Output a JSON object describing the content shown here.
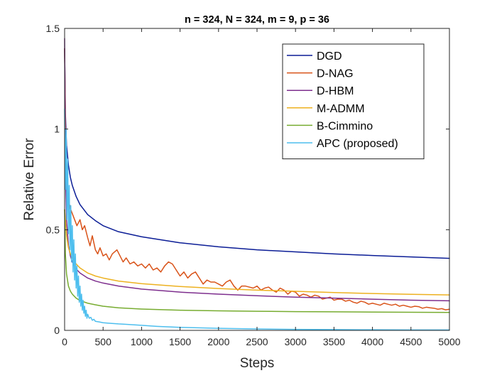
{
  "chart_data": {
    "type": "line",
    "title": "n = 324, N = 324, m = 9, p = 36",
    "xlabel": "Steps",
    "ylabel": "Relative Error",
    "xlim": [
      0,
      5000
    ],
    "ylim": [
      0,
      1.5
    ],
    "xticks": [
      0,
      500,
      1000,
      1500,
      2000,
      2500,
      3000,
      3500,
      4000,
      4500,
      5000
    ],
    "yticks": [
      0,
      0.5,
      1,
      1.5
    ],
    "grid": false,
    "legend_position": "top-right",
    "series": [
      {
        "name": "DGD",
        "color": "#0b1d96",
        "x": [
          0,
          10,
          25,
          50,
          75,
          100,
          150,
          200,
          300,
          400,
          500,
          700,
          1000,
          1500,
          2000,
          2500,
          3000,
          3500,
          4000,
          4500,
          5000
        ],
        "y": [
          1.4,
          1.08,
          0.92,
          0.82,
          0.76,
          0.72,
          0.665,
          0.625,
          0.575,
          0.545,
          0.52,
          0.49,
          0.465,
          0.435,
          0.415,
          0.4,
          0.39,
          0.38,
          0.372,
          0.365,
          0.358
        ]
      },
      {
        "name": "D-NAG",
        "color": "#d95319",
        "x": [
          0,
          10,
          20,
          40,
          60,
          80,
          100,
          130,
          160,
          200,
          230,
          260,
          300,
          330,
          360,
          400,
          430,
          460,
          500,
          540,
          580,
          620,
          680,
          720,
          760,
          800,
          850,
          900,
          950,
          1000,
          1050,
          1100,
          1150,
          1200,
          1250,
          1300,
          1350,
          1400,
          1450,
          1500,
          1550,
          1600,
          1650,
          1700,
          1750,
          1800,
          1850,
          1900,
          1950,
          2000,
          2050,
          2100,
          2150,
          2200,
          2250,
          2300,
          2350,
          2400,
          2450,
          2500,
          2550,
          2600,
          2650,
          2700,
          2750,
          2800,
          2850,
          2900,
          2950,
          3000,
          3050,
          3100,
          3150,
          3200,
          3250,
          3300,
          3350,
          3400,
          3450,
          3500,
          3550,
          3600,
          3650,
          3700,
          3750,
          3800,
          3850,
          3900,
          3950,
          4000,
          4050,
          4100,
          4150,
          4200,
          4250,
          4300,
          4350,
          4400,
          4450,
          4500,
          4550,
          4600,
          4650,
          4700,
          4750,
          4800,
          4850,
          4900,
          4950,
          5000
        ],
        "y": [
          1.4,
          1.05,
          0.85,
          0.7,
          0.63,
          0.6,
          0.58,
          0.55,
          0.52,
          0.55,
          0.5,
          0.52,
          0.46,
          0.42,
          0.47,
          0.4,
          0.38,
          0.41,
          0.37,
          0.38,
          0.35,
          0.38,
          0.4,
          0.37,
          0.34,
          0.36,
          0.33,
          0.34,
          0.32,
          0.33,
          0.31,
          0.33,
          0.3,
          0.31,
          0.29,
          0.32,
          0.34,
          0.33,
          0.3,
          0.27,
          0.29,
          0.26,
          0.28,
          0.29,
          0.26,
          0.23,
          0.25,
          0.24,
          0.24,
          0.23,
          0.22,
          0.24,
          0.25,
          0.22,
          0.2,
          0.22,
          0.22,
          0.215,
          0.21,
          0.22,
          0.2,
          0.21,
          0.215,
          0.2,
          0.19,
          0.21,
          0.2,
          0.18,
          0.195,
          0.19,
          0.17,
          0.18,
          0.175,
          0.165,
          0.175,
          0.17,
          0.155,
          0.16,
          0.165,
          0.15,
          0.155,
          0.155,
          0.145,
          0.15,
          0.14,
          0.135,
          0.145,
          0.14,
          0.13,
          0.135,
          0.13,
          0.125,
          0.135,
          0.13,
          0.125,
          0.13,
          0.12,
          0.125,
          0.12,
          0.115,
          0.12,
          0.118,
          0.11,
          0.115,
          0.112,
          0.11,
          0.105,
          0.108,
          0.102,
          0.105
        ]
      },
      {
        "name": "D-HBM",
        "color": "#7e2f8e",
        "x": [
          0,
          10,
          25,
          50,
          75,
          100,
          150,
          200,
          300,
          400,
          500,
          700,
          1000,
          1500,
          2000,
          2500,
          3000,
          3500,
          4000,
          4500,
          5000
        ],
        "y": [
          1.45,
          0.8,
          0.55,
          0.42,
          0.37,
          0.34,
          0.305,
          0.285,
          0.26,
          0.245,
          0.235,
          0.22,
          0.205,
          0.19,
          0.18,
          0.172,
          0.165,
          0.16,
          0.155,
          0.15,
          0.147
        ]
      },
      {
        "name": "M-ADMM",
        "color": "#edb120",
        "x": [
          0,
          10,
          25,
          50,
          75,
          100,
          150,
          200,
          300,
          400,
          500,
          700,
          1000,
          1500,
          2000,
          2500,
          3000,
          3500,
          4000,
          4500,
          5000
        ],
        "y": [
          0.6,
          0.55,
          0.47,
          0.41,
          0.38,
          0.36,
          0.33,
          0.31,
          0.285,
          0.27,
          0.26,
          0.245,
          0.232,
          0.218,
          0.208,
          0.2,
          0.194,
          0.188,
          0.183,
          0.179,
          0.176
        ]
      },
      {
        "name": "B-Cimmino",
        "color": "#77ac30",
        "x": [
          0,
          10,
          25,
          50,
          75,
          100,
          150,
          200,
          300,
          400,
          500,
          700,
          1000,
          1500,
          2000,
          2500,
          3000,
          3500,
          4000,
          4500,
          5000
        ],
        "y": [
          0.6,
          0.38,
          0.28,
          0.22,
          0.195,
          0.18,
          0.16,
          0.148,
          0.135,
          0.127,
          0.12,
          0.112,
          0.106,
          0.1,
          0.097,
          0.095,
          0.093,
          0.092,
          0.091,
          0.09,
          0.089
        ]
      },
      {
        "name": "APC (proposed)",
        "color": "#4dbeee",
        "x": [
          0,
          10,
          20,
          30,
          40,
          50,
          60,
          70,
          80,
          90,
          100,
          110,
          120,
          130,
          140,
          150,
          160,
          170,
          180,
          190,
          200,
          210,
          220,
          230,
          240,
          250,
          260,
          270,
          280,
          290,
          300,
          320,
          340,
          360,
          380,
          400,
          450,
          500,
          600,
          700,
          800,
          1000,
          1200,
          1500,
          2000,
          2500,
          3000,
          3500,
          4000,
          4500,
          5000
        ],
        "y": [
          1.1,
          0.7,
          1.0,
          0.55,
          0.85,
          0.48,
          0.72,
          0.4,
          0.62,
          0.34,
          0.52,
          0.29,
          0.45,
          0.25,
          0.38,
          0.21,
          0.32,
          0.17,
          0.27,
          0.14,
          0.22,
          0.12,
          0.18,
          0.1,
          0.15,
          0.085,
          0.12,
          0.07,
          0.1,
          0.06,
          0.08,
          0.06,
          0.065,
          0.05,
          0.055,
          0.045,
          0.042,
          0.038,
          0.035,
          0.032,
          0.03,
          0.025,
          0.02,
          0.015,
          0.01,
          0.007,
          0.005,
          0.004,
          0.003,
          0.002,
          0.002
        ]
      }
    ]
  }
}
